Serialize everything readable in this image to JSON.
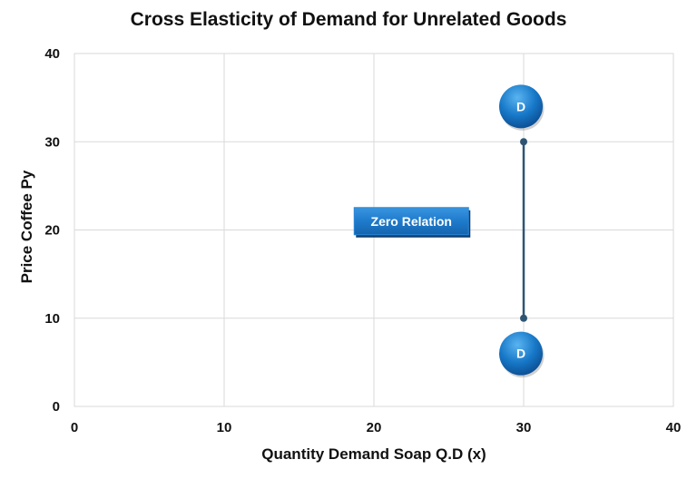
{
  "chart_data": {
    "type": "line",
    "title": "Cross Elasticity of Demand for Unrelated Goods",
    "xlabel": "Quantity Demand Soap Q.D (x)",
    "ylabel": "Price Coffee Py",
    "xlim": [
      0,
      40
    ],
    "ylim": [
      0,
      40
    ],
    "x_ticks": [
      0,
      10,
      20,
      30,
      40
    ],
    "y_ticks": [
      0,
      10,
      20,
      30,
      40
    ],
    "grid": true,
    "series": [
      {
        "points": [
          {
            "x": 30,
            "y": 30
          },
          {
            "x": 30,
            "y": 10
          }
        ],
        "color": "#2F5575"
      }
    ],
    "markers": [
      {
        "label": "D",
        "x": 30,
        "y": 34
      },
      {
        "label": "D",
        "x": 30,
        "y": 6
      }
    ],
    "annotations": [
      {
        "text": "Zero Relation",
        "x": 22.5,
        "y": 21
      }
    ]
  }
}
